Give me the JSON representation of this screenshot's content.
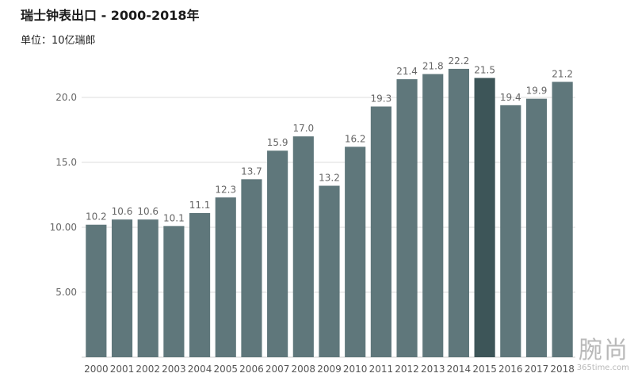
{
  "chart_data": {
    "type": "bar",
    "title": "瑞士钟表出口 - 2000-2018年",
    "subtitle": "单位：10亿瑞郎",
    "categories": [
      "2000",
      "2001",
      "2002",
      "2003",
      "2004",
      "2005",
      "2006",
      "2007",
      "2008",
      "2009",
      "2010",
      "2011",
      "2012",
      "2013",
      "2014",
      "2015",
      "2016",
      "2017",
      "2018"
    ],
    "values": [
      10.2,
      10.6,
      10.6,
      10.1,
      11.1,
      12.3,
      13.7,
      15.9,
      17.0,
      13.2,
      16.2,
      19.3,
      21.4,
      21.8,
      22.2,
      21.5,
      19.4,
      19.9,
      21.2
    ],
    "value_labels": [
      "10.2",
      "10.6",
      "10.6",
      "10.1",
      "11.1",
      "12.3",
      "13.7",
      "15.9",
      "17.0",
      "13.2",
      "16.2",
      "19.3",
      "21.4",
      "21.8",
      "22.2",
      "21.5",
      "19.4",
      "19.9",
      "21.2"
    ],
    "highlight_category": "2015",
    "y_ticks": [
      5,
      10,
      15,
      20
    ],
    "y_tick_labels": [
      "5.00",
      "10.00",
      "15.0",
      "20.0"
    ],
    "ylim": [
      0,
      25
    ],
    "grid": true,
    "colors": {
      "bar": "#5f777b",
      "highlight": "#3d5558",
      "grid": "#dcdcdc",
      "label": "#666666"
    }
  },
  "watermark": {
    "text": "腕尚",
    "url": "365time.com"
  }
}
